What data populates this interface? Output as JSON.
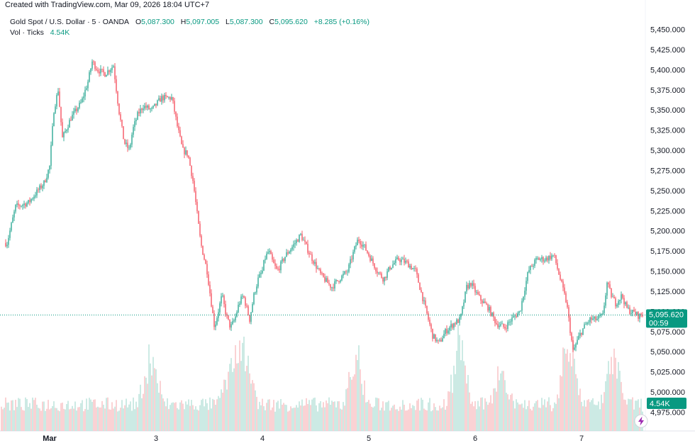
{
  "header": {
    "created": "Created with TradingView.com, Mar 09, 2026 18:04 UTC+7",
    "symbol": "Gold Spot / U.S. Dollar · 5 · OANDA",
    "open_label": "O",
    "open": "5,087.300",
    "high_label": "H",
    "high": "5,097.005",
    "low_label": "L",
    "low": "5,087.300",
    "close_label": "C",
    "close": "5,095.620",
    "change": "+8.285 (+0.16%)",
    "volume_label": "Vol · Ticks",
    "volume_value": "4.54K"
  },
  "price_badge": {
    "price": "5,095.620",
    "countdown": "00:59"
  },
  "volume_badge": "4.54K",
  "colors": {
    "up": "#089981",
    "down": "#f23645",
    "up_vol": "#b7e1d9",
    "down_vol": "#f7bec2",
    "badge": "#089981"
  },
  "chart_data": {
    "type": "candlestick",
    "instrument": "Gold Spot / U.S. Dollar",
    "interval": "5",
    "ylim": [
      4960,
      5465
    ],
    "y_ticks": [
      4975,
      5000,
      5025,
      5050,
      5075,
      5100,
      5125,
      5150,
      5175,
      5200,
      5225,
      5250,
      5275,
      5300,
      5325,
      5350,
      5375,
      5400,
      5425,
      5450
    ],
    "y_tick_labels": [
      "4,975.000",
      "5,000.000",
      "5,025.000",
      "5,050.000",
      "5,075.000",
      "5,100.000",
      "5,125.000",
      "5,150.000",
      "5,175.000",
      "5,200.000",
      "5,225.000",
      "5,250.000",
      "5,275.000",
      "5,300.000",
      "5,325.000",
      "5,350.000",
      "5,375.000",
      "5,400.000",
      "5,425.000",
      "5,450.000"
    ],
    "x_tick_labels": [
      "Mar",
      "3",
      "4",
      "5",
      "6",
      "7"
    ],
    "x_tick_positions": [
      0,
      1,
      2,
      3,
      4,
      5
    ],
    "x_range": [
      -0.4,
      5.56
    ],
    "last_price": 5095.62,
    "path_x": [
      -0.4,
      -0.32,
      -0.2,
      -0.05,
      0.0,
      0.04,
      0.08,
      0.12,
      0.2,
      0.3,
      0.36,
      0.4,
      0.45,
      0.52,
      0.6,
      0.65,
      0.7,
      0.75,
      0.78,
      0.83,
      0.88,
      0.96,
      1.05,
      1.15,
      1.2,
      1.25,
      1.3,
      1.35,
      1.42,
      1.48,
      1.55,
      1.62,
      1.66,
      1.7,
      1.74,
      1.78,
      1.82,
      1.88,
      1.92,
      1.96,
      2.0,
      2.02,
      2.06,
      2.1,
      2.14,
      2.18,
      2.22,
      2.28,
      2.36,
      2.45,
      2.55,
      2.65,
      2.72,
      2.8,
      2.86,
      2.9,
      2.96,
      3.02,
      3.08,
      3.14,
      3.2,
      3.28,
      3.36,
      3.44,
      3.52,
      3.6,
      3.66,
      3.72,
      3.8,
      3.86,
      3.92,
      3.96,
      4.0,
      4.05,
      4.12,
      4.2,
      4.28,
      4.34,
      4.42,
      4.5,
      4.58,
      4.66,
      4.74,
      4.8,
      4.86,
      4.92,
      4.98,
      5.02,
      5.08,
      5.14,
      5.2,
      5.24,
      5.28,
      5.32,
      5.38,
      5.42,
      5.46,
      5.5,
      5.54,
      5.56
    ],
    "path_y": [
      5185,
      5230,
      5235,
      5260,
      5280,
      5350,
      5375,
      5315,
      5340,
      5360,
      5385,
      5410,
      5400,
      5395,
      5405,
      5350,
      5310,
      5300,
      5325,
      5345,
      5355,
      5350,
      5365,
      5365,
      5330,
      5300,
      5295,
      5260,
      5185,
      5150,
      5080,
      5120,
      5095,
      5080,
      5090,
      5110,
      5120,
      5090,
      5120,
      5140,
      5150,
      5165,
      5175,
      5160,
      5150,
      5160,
      5170,
      5180,
      5195,
      5170,
      5145,
      5130,
      5140,
      5150,
      5175,
      5190,
      5180,
      5165,
      5150,
      5140,
      5155,
      5165,
      5160,
      5150,
      5110,
      5070,
      5060,
      5075,
      5085,
      5090,
      5130,
      5135,
      5125,
      5115,
      5105,
      5085,
      5080,
      5090,
      5100,
      5150,
      5165,
      5165,
      5170,
      5140,
      5110,
      5050,
      5070,
      5080,
      5090,
      5090,
      5095,
      5135,
      5120,
      5110,
      5120,
      5105,
      5100,
      5098,
      5094,
      5095.62
    ],
    "volume": {
      "name": "Vol · Ticks",
      "last": "4.54K",
      "spike_x": [
        0.95,
        1.7,
        1.84,
        2.88,
        3.85,
        4.25,
        4.88,
        5.3
      ],
      "spike_height": [
        0.5,
        0.45,
        0.55,
        0.5,
        0.6,
        0.35,
        0.7,
        0.45
      ]
    }
  }
}
